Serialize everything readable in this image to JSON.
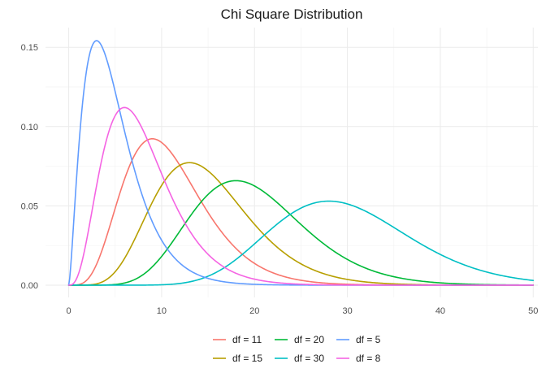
{
  "chart_data": {
    "type": "line",
    "title": "Chi Square Distribution",
    "xlabel": "",
    "ylabel": "",
    "xlim": [
      -2.5,
      50.5
    ],
    "ylim": [
      -0.0077,
      0.1624
    ],
    "x_ticks": [
      0,
      10,
      20,
      30,
      40,
      50
    ],
    "x_tick_labels": [
      "0",
      "10",
      "20",
      "30",
      "40",
      "50"
    ],
    "y_ticks": [
      0.0,
      0.05,
      0.1,
      0.15
    ],
    "y_tick_labels": [
      "0.00",
      "0.05",
      "0.10",
      "0.15"
    ],
    "x_range": [
      0,
      50
    ],
    "grid": true,
    "legend_position": "bottom",
    "series": [
      {
        "name": "df = 11",
        "df": 11,
        "color": "#F8766D"
      },
      {
        "name": "df = 15",
        "df": 15,
        "color": "#B79F00"
      },
      {
        "name": "df = 20",
        "df": 20,
        "color": "#00BA38"
      },
      {
        "name": "df = 30",
        "df": 30,
        "color": "#00BFC4"
      },
      {
        "name": "df = 5",
        "df": 5,
        "color": "#619CFF"
      },
      {
        "name": "df = 8",
        "df": 8,
        "color": "#F564E3"
      }
    ]
  }
}
